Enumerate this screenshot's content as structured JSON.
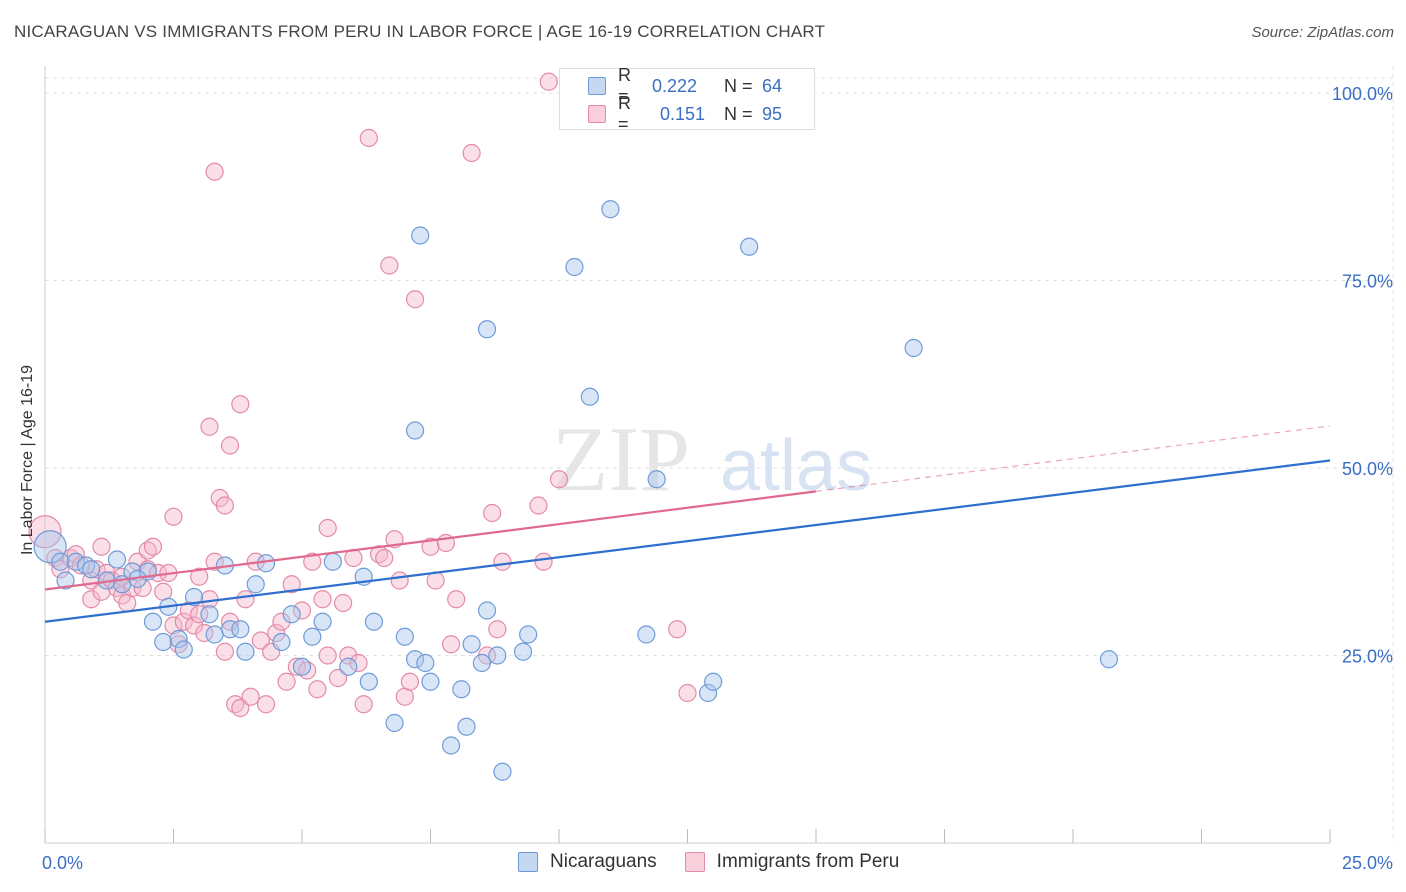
{
  "title": "NICARAGUAN VS IMMIGRANTS FROM PERU IN LABOR FORCE | AGE 16-19 CORRELATION CHART",
  "source": "Source: ZipAtlas.com",
  "watermark": {
    "zip": "ZIP",
    "atlas": "atlas"
  },
  "legend": {
    "rows": [
      {
        "r_label": "R =",
        "r_value": "0.222",
        "n_label": "N =",
        "n_value": "64"
      },
      {
        "r_label": "R =",
        "r_value": "0.151",
        "n_label": "N =",
        "n_value": "95"
      }
    ]
  },
  "colors": {
    "blue_fill": "#a9c6ec",
    "blue_stroke": "#6e9bd8",
    "blue_line": "#2f6fcf",
    "pink_fill": "#f5b8cc",
    "pink_stroke": "#e48aa8",
    "pink_line": "#e0698f",
    "tick_text": "#3a6fc4",
    "grid": "#e2e2e2"
  },
  "chart_data": {
    "type": "scatter",
    "title": "NICARAGUAN VS IMMIGRANTS FROM PERU IN LABOR FORCE | AGE 16-19 CORRELATION CHART",
    "xlabel": "",
    "ylabel": "In Labor Force | Age 16-19",
    "xlim": [
      0,
      25
    ],
    "ylim": [
      0,
      102
    ],
    "x_tick_labels": [
      "0.0%",
      "25.0%"
    ],
    "y_tick_labels": [
      "25.0%",
      "50.0%",
      "75.0%",
      "100.0%"
    ],
    "y_ticks": [
      25,
      50,
      75,
      100
    ],
    "grid": true,
    "legend_position": "top-center",
    "series": [
      {
        "name": "Nicaraguans",
        "color": "#a9c6ec",
        "trend": {
          "x": [
            0,
            25
          ],
          "y": [
            29.5,
            51.0
          ],
          "dashed_from": null
        },
        "points": [
          {
            "x": 0.1,
            "y": 39.5,
            "big": true
          },
          {
            "x": 0.3,
            "y": 37.5
          },
          {
            "x": 0.4,
            "y": 35.0
          },
          {
            "x": 0.6,
            "y": 37.5
          },
          {
            "x": 0.8,
            "y": 37.0
          },
          {
            "x": 0.9,
            "y": 36.5
          },
          {
            "x": 1.2,
            "y": 35.0
          },
          {
            "x": 1.4,
            "y": 37.8
          },
          {
            "x": 1.7,
            "y": 36.2
          },
          {
            "x": 2.0,
            "y": 36.2
          },
          {
            "x": 1.5,
            "y": 34.5
          },
          {
            "x": 1.8,
            "y": 35.2
          },
          {
            "x": 2.1,
            "y": 29.5
          },
          {
            "x": 2.3,
            "y": 26.8
          },
          {
            "x": 2.4,
            "y": 31.5
          },
          {
            "x": 2.6,
            "y": 27.2
          },
          {
            "x": 2.7,
            "y": 25.8
          },
          {
            "x": 2.9,
            "y": 32.8
          },
          {
            "x": 3.2,
            "y": 30.5
          },
          {
            "x": 3.3,
            "y": 27.8
          },
          {
            "x": 3.5,
            "y": 37.0
          },
          {
            "x": 3.6,
            "y": 28.5
          },
          {
            "x": 3.8,
            "y": 28.5
          },
          {
            "x": 3.9,
            "y": 25.5
          },
          {
            "x": 4.1,
            "y": 34.5
          },
          {
            "x": 4.3,
            "y": 37.3
          },
          {
            "x": 4.6,
            "y": 26.8
          },
          {
            "x": 4.8,
            "y": 30.5
          },
          {
            "x": 5.0,
            "y": 23.5
          },
          {
            "x": 5.2,
            "y": 27.5
          },
          {
            "x": 5.4,
            "y": 29.5
          },
          {
            "x": 5.6,
            "y": 37.5
          },
          {
            "x": 5.9,
            "y": 23.5
          },
          {
            "x": 6.2,
            "y": 35.5
          },
          {
            "x": 6.3,
            "y": 21.5
          },
          {
            "x": 6.4,
            "y": 29.5
          },
          {
            "x": 6.8,
            "y": 16.0
          },
          {
            "x": 7.0,
            "y": 27.5
          },
          {
            "x": 7.2,
            "y": 24.5
          },
          {
            "x": 7.5,
            "y": 21.5
          },
          {
            "x": 7.3,
            "y": 81.0
          },
          {
            "x": 7.2,
            "y": 55.0
          },
          {
            "x": 7.4,
            "y": 24.0
          },
          {
            "x": 7.9,
            "y": 13.0
          },
          {
            "x": 8.1,
            "y": 20.5
          },
          {
            "x": 8.2,
            "y": 15.5
          },
          {
            "x": 8.3,
            "y": 26.5
          },
          {
            "x": 8.5,
            "y": 24.0
          },
          {
            "x": 8.6,
            "y": 31.0
          },
          {
            "x": 8.6,
            "y": 68.5
          },
          {
            "x": 8.8,
            "y": 25.0
          },
          {
            "x": 8.9,
            "y": 9.5
          },
          {
            "x": 9.3,
            "y": 25.5
          },
          {
            "x": 9.4,
            "y": 27.8
          },
          {
            "x": 10.3,
            "y": 76.8
          },
          {
            "x": 10.6,
            "y": 59.5
          },
          {
            "x": 11.0,
            "y": 84.5
          },
          {
            "x": 11.7,
            "y": 27.8
          },
          {
            "x": 11.9,
            "y": 48.5
          },
          {
            "x": 12.9,
            "y": 20.0
          },
          {
            "x": 13.0,
            "y": 21.5
          },
          {
            "x": 13.7,
            "y": 79.5
          },
          {
            "x": 16.9,
            "y": 66.0
          },
          {
            "x": 20.7,
            "y": 24.5
          }
        ]
      },
      {
        "name": "Immigrants from Peru",
        "color": "#f5b8cc",
        "trend": {
          "x": [
            0,
            25
          ],
          "y": [
            33.8,
            55.6
          ],
          "dashed_from": 15.0
        },
        "points": [
          {
            "x": 0.0,
            "y": 41.5,
            "big": true
          },
          {
            "x": 0.2,
            "y": 38.0
          },
          {
            "x": 0.3,
            "y": 36.5
          },
          {
            "x": 0.5,
            "y": 38.0
          },
          {
            "x": 0.6,
            "y": 38.5
          },
          {
            "x": 0.7,
            "y": 37.0
          },
          {
            "x": 0.9,
            "y": 35.0
          },
          {
            "x": 0.9,
            "y": 32.5
          },
          {
            "x": 1.0,
            "y": 36.5
          },
          {
            "x": 1.1,
            "y": 33.5
          },
          {
            "x": 1.1,
            "y": 39.5
          },
          {
            "x": 1.2,
            "y": 36.0
          },
          {
            "x": 1.3,
            "y": 35.0
          },
          {
            "x": 1.4,
            "y": 34.0
          },
          {
            "x": 1.5,
            "y": 35.5
          },
          {
            "x": 1.5,
            "y": 33.0
          },
          {
            "x": 1.6,
            "y": 32.0
          },
          {
            "x": 1.7,
            "y": 34.0
          },
          {
            "x": 1.8,
            "y": 37.5
          },
          {
            "x": 1.9,
            "y": 34.0
          },
          {
            "x": 2.0,
            "y": 39.0
          },
          {
            "x": 2.0,
            "y": 36.5
          },
          {
            "x": 2.1,
            "y": 39.5
          },
          {
            "x": 2.2,
            "y": 36.0
          },
          {
            "x": 2.3,
            "y": 33.5
          },
          {
            "x": 2.4,
            "y": 36.0
          },
          {
            "x": 2.5,
            "y": 43.5
          },
          {
            "x": 2.5,
            "y": 29.0
          },
          {
            "x": 2.6,
            "y": 26.5
          },
          {
            "x": 2.7,
            "y": 29.5
          },
          {
            "x": 2.8,
            "y": 31.0
          },
          {
            "x": 2.9,
            "y": 29.0
          },
          {
            "x": 3.0,
            "y": 30.5
          },
          {
            "x": 3.0,
            "y": 35.5
          },
          {
            "x": 3.1,
            "y": 28.0
          },
          {
            "x": 3.2,
            "y": 32.5
          },
          {
            "x": 3.2,
            "y": 55.5
          },
          {
            "x": 3.3,
            "y": 37.5
          },
          {
            "x": 3.3,
            "y": 89.5
          },
          {
            "x": 3.4,
            "y": 46.0
          },
          {
            "x": 3.5,
            "y": 25.5
          },
          {
            "x": 3.5,
            "y": 45.0
          },
          {
            "x": 3.6,
            "y": 29.5
          },
          {
            "x": 3.6,
            "y": 53.0
          },
          {
            "x": 3.7,
            "y": 18.5
          },
          {
            "x": 3.8,
            "y": 58.5
          },
          {
            "x": 3.8,
            "y": 18.0
          },
          {
            "x": 3.9,
            "y": 32.5
          },
          {
            "x": 4.0,
            "y": 19.5
          },
          {
            "x": 4.1,
            "y": 37.5
          },
          {
            "x": 4.2,
            "y": 27.0
          },
          {
            "x": 4.3,
            "y": 18.5
          },
          {
            "x": 4.4,
            "y": 25.5
          },
          {
            "x": 4.5,
            "y": 28.0
          },
          {
            "x": 4.6,
            "y": 29.5
          },
          {
            "x": 4.7,
            "y": 21.5
          },
          {
            "x": 4.8,
            "y": 34.5
          },
          {
            "x": 4.9,
            "y": 23.5
          },
          {
            "x": 5.0,
            "y": 31.0
          },
          {
            "x": 5.1,
            "y": 23.0
          },
          {
            "x": 5.2,
            "y": 37.5
          },
          {
            "x": 5.3,
            "y": 20.5
          },
          {
            "x": 5.4,
            "y": 32.5
          },
          {
            "x": 5.5,
            "y": 25.0
          },
          {
            "x": 5.5,
            "y": 42.0
          },
          {
            "x": 5.7,
            "y": 22.0
          },
          {
            "x": 5.8,
            "y": 32.0
          },
          {
            "x": 5.9,
            "y": 25.0
          },
          {
            "x": 6.0,
            "y": 38.0
          },
          {
            "x": 6.1,
            "y": 24.0
          },
          {
            "x": 6.2,
            "y": 18.5
          },
          {
            "x": 6.3,
            "y": 94.0
          },
          {
            "x": 6.5,
            "y": 38.5
          },
          {
            "x": 6.6,
            "y": 38.0
          },
          {
            "x": 6.7,
            "y": 77.0
          },
          {
            "x": 6.8,
            "y": 40.5
          },
          {
            "x": 6.9,
            "y": 35.0
          },
          {
            "x": 7.0,
            "y": 19.5
          },
          {
            "x": 7.1,
            "y": 21.5
          },
          {
            "x": 7.2,
            "y": 72.5
          },
          {
            "x": 7.5,
            "y": 39.5
          },
          {
            "x": 7.6,
            "y": 35.0
          },
          {
            "x": 7.8,
            "y": 40.0
          },
          {
            "x": 7.9,
            "y": 26.5
          },
          {
            "x": 8.0,
            "y": 32.5
          },
          {
            "x": 8.3,
            "y": 92.0
          },
          {
            "x": 8.6,
            "y": 25.0
          },
          {
            "x": 8.7,
            "y": 44.0
          },
          {
            "x": 8.8,
            "y": 28.5
          },
          {
            "x": 8.9,
            "y": 37.5
          },
          {
            "x": 9.6,
            "y": 45.0
          },
          {
            "x": 9.7,
            "y": 37.5
          },
          {
            "x": 9.8,
            "y": 101.5
          },
          {
            "x": 10.0,
            "y": 48.5
          },
          {
            "x": 12.3,
            "y": 28.5
          },
          {
            "x": 12.5,
            "y": 20.0
          }
        ]
      }
    ]
  },
  "bottom_legend": [
    "Nicaraguans",
    "Immigrants from Peru"
  ]
}
